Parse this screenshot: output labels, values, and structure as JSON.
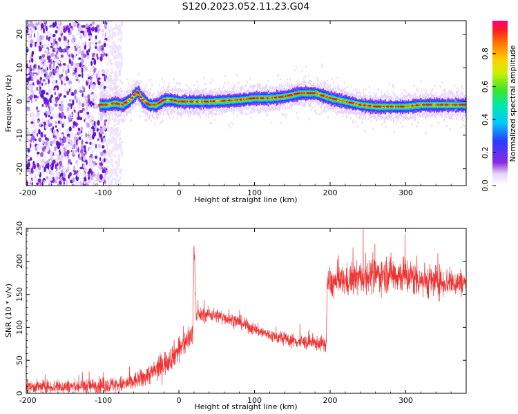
{
  "title": "S120.2023.052.11.23.G04",
  "chart_data": [
    {
      "type": "heatmap",
      "xlabel": "Height of straight line (km)",
      "ylabel": "Frequency (Hz)",
      "xlim": [
        -202,
        380
      ],
      "ylim": [
        -25,
        24
      ],
      "xticks": [
        -200,
        -100,
        0,
        100,
        200,
        300
      ],
      "yticks": [
        -20,
        -10,
        0,
        10,
        20
      ],
      "colorbar": {
        "label": "Normalized spectral amplitude",
        "range": [
          0,
          1
        ],
        "ticks": [
          "0.0",
          "0.2",
          "0.4",
          "0.6",
          "0.8"
        ],
        "tick_values": [
          0.0,
          0.2,
          0.4,
          0.6,
          0.8
        ]
      },
      "noise_region_x": [
        -202,
        -95
      ],
      "ridge": {
        "x": [
          -105,
          -95,
          -85,
          -75,
          -65,
          -55,
          -50,
          -45,
          -40,
          -30,
          -20,
          -10,
          0,
          20,
          40,
          60,
          80,
          100,
          120,
          140,
          160,
          180,
          200,
          220,
          240,
          260,
          280,
          300,
          320,
          340,
          360,
          380
        ],
        "y": [
          -1.0,
          -1.0,
          -0.5,
          -1.0,
          0.5,
          3.0,
          1.0,
          0.0,
          -1.0,
          -1.0,
          0.5,
          0.5,
          0.0,
          0.0,
          0.0,
          0.2,
          0.5,
          1.0,
          1.0,
          1.5,
          2.5,
          2.5,
          1.0,
          0.0,
          -1.0,
          -1.5,
          -1.5,
          -1.5,
          -1.0,
          -1.0,
          -1.0,
          -1.0
        ]
      }
    },
    {
      "type": "line",
      "color": "#ee3333",
      "xlabel": "Height of straight line (km)",
      "ylabel": "SNR (10 * v/v)",
      "xlim": [
        -202,
        380
      ],
      "ylim": [
        0,
        250
      ],
      "xticks": [
        -200,
        -100,
        0,
        100,
        200,
        300
      ],
      "yticks": [
        0,
        50,
        100,
        150,
        200,
        250
      ],
      "trend": {
        "x": [
          -202,
          -150,
          -100,
          -70,
          -50,
          -30,
          -10,
          5,
          18,
          20,
          23,
          25,
          40,
          60,
          80,
          100,
          120,
          140,
          160,
          180,
          195,
          196,
          220,
          250,
          280,
          300,
          330,
          360,
          380
        ],
        "y": [
          10,
          10,
          12,
          14,
          22,
          35,
          55,
          72,
          90,
          230,
          115,
          118,
          120,
          115,
          108,
          97,
          88,
          82,
          78,
          76,
          75,
          165,
          170,
          178,
          182,
          178,
          170,
          168,
          168
        ]
      },
      "noise_amplitude": {
        "x": [
          -202,
          -60,
          -20,
          18,
          25,
          100,
          195,
          196,
          300,
          380
        ],
        "y": [
          6,
          8,
          12,
          12,
          7,
          6,
          7,
          14,
          18,
          12
        ]
      }
    }
  ]
}
